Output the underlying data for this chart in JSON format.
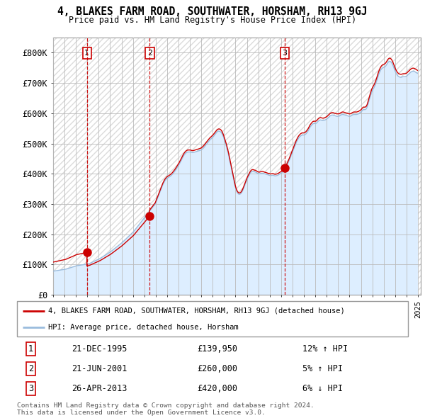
{
  "title": "4, BLAKES FARM ROAD, SOUTHWATER, HORSHAM, RH13 9GJ",
  "subtitle": "Price paid vs. HM Land Registry's House Price Index (HPI)",
  "ylim": [
    0,
    850000
  ],
  "yticks": [
    0,
    100000,
    200000,
    300000,
    400000,
    500000,
    600000,
    700000,
    800000
  ],
  "ytick_labels": [
    "£0",
    "£100K",
    "£200K",
    "£300K",
    "£400K",
    "£500K",
    "£600K",
    "£700K",
    "£800K"
  ],
  "sale_dates": [
    "1995-12-21",
    "2001-06-21",
    "2013-04-26"
  ],
  "sale_prices": [
    139950,
    260000,
    420000
  ],
  "sale_labels": [
    "1",
    "2",
    "3"
  ],
  "sale_date_strs": [
    "21-DEC-1995",
    "21-JUN-2001",
    "26-APR-2013"
  ],
  "sale_pct": [
    "12% ↑ HPI",
    "5% ↑ HPI",
    "6% ↓ HPI"
  ],
  "line_color_red": "#cc0000",
  "line_color_blue": "#99bbdd",
  "fill_color_blue": "#ddeeff",
  "marker_color_red": "#cc0000",
  "vline_color": "#cc0000",
  "grid_color": "#cccccc",
  "background_color": "#ffffff",
  "legend_label_red": "4, BLAKES FARM ROAD, SOUTHWATER, HORSHAM, RH13 9GJ (detached house)",
  "legend_label_blue": "HPI: Average price, detached house, Horsham",
  "footnote": "Contains HM Land Registry data © Crown copyright and database right 2024.\nThis data is licensed under the Open Government Licence v3.0.",
  "xlim_start": 1993.0,
  "xlim_end": 2025.25,
  "hpi_base_monthly": {
    "1993-01": 78000,
    "1993-02": 78500,
    "1993-03": 79000,
    "1993-04": 79500,
    "1993-05": 80000,
    "1993-06": 80500,
    "1993-07": 81000,
    "1993-08": 81500,
    "1993-09": 82000,
    "1993-10": 82500,
    "1993-11": 83000,
    "1993-12": 83500,
    "1994-01": 84000,
    "1994-02": 84500,
    "1994-03": 85500,
    "1994-04": 86500,
    "1994-05": 87500,
    "1994-06": 88500,
    "1994-07": 89500,
    "1994-08": 90500,
    "1994-09": 91500,
    "1994-10": 92500,
    "1994-11": 93500,
    "1994-12": 94500,
    "1995-01": 95500,
    "1995-02": 96000,
    "1995-03": 96500,
    "1995-04": 97000,
    "1995-05": 97500,
    "1995-06": 98000,
    "1995-07": 98500,
    "1995-08": 99000,
    "1995-09": 99500,
    "1995-10": 100000,
    "1995-11": 100500,
    "1995-12": 101000,
    "1996-01": 101500,
    "1996-02": 102500,
    "1996-03": 103500,
    "1996-04": 105000,
    "1996-05": 106500,
    "1996-06": 108000,
    "1996-07": 109500,
    "1996-08": 111000,
    "1996-09": 112500,
    "1996-10": 114000,
    "1996-11": 115500,
    "1996-12": 117000,
    "1997-01": 118500,
    "1997-02": 120000,
    "1997-03": 122000,
    "1997-04": 124000,
    "1997-05": 126000,
    "1997-06": 128000,
    "1997-07": 130000,
    "1997-08": 132000,
    "1997-09": 134000,
    "1997-10": 136000,
    "1997-11": 138000,
    "1997-12": 140000,
    "1998-01": 142000,
    "1998-02": 144500,
    "1998-03": 147000,
    "1998-04": 149500,
    "1998-05": 152000,
    "1998-06": 154500,
    "1998-07": 157000,
    "1998-08": 159500,
    "1998-09": 162000,
    "1998-10": 164500,
    "1998-11": 167000,
    "1998-12": 169500,
    "1999-01": 172000,
    "1999-02": 175000,
    "1999-03": 178000,
    "1999-04": 181000,
    "1999-05": 184000,
    "1999-06": 187000,
    "1999-07": 190000,
    "1999-08": 193000,
    "1999-09": 196000,
    "1999-10": 199000,
    "1999-11": 202000,
    "1999-12": 205000,
    "2000-01": 208000,
    "2000-02": 212000,
    "2000-03": 216000,
    "2000-04": 220000,
    "2000-05": 224000,
    "2000-06": 228000,
    "2000-07": 232000,
    "2000-08": 236000,
    "2000-09": 240000,
    "2000-10": 244000,
    "2000-11": 248000,
    "2000-12": 252000,
    "2001-01": 256000,
    "2001-02": 260000,
    "2001-03": 264000,
    "2001-04": 268000,
    "2001-05": 272000,
    "2001-06": 276000,
    "2001-07": 280000,
    "2001-08": 284000,
    "2001-09": 288000,
    "2001-10": 292000,
    "2001-11": 296000,
    "2001-12": 300000,
    "2002-01": 308000,
    "2002-02": 316000,
    "2002-03": 324000,
    "2002-04": 332000,
    "2002-05": 340000,
    "2002-06": 348000,
    "2002-07": 356000,
    "2002-08": 364000,
    "2002-09": 370000,
    "2002-10": 376000,
    "2002-11": 380000,
    "2002-12": 384000,
    "2003-01": 386000,
    "2003-02": 388000,
    "2003-03": 390000,
    "2003-04": 392000,
    "2003-05": 395000,
    "2003-06": 398000,
    "2003-07": 402000,
    "2003-08": 406000,
    "2003-09": 410000,
    "2003-10": 415000,
    "2003-11": 420000,
    "2003-12": 425000,
    "2004-01": 430000,
    "2004-02": 436000,
    "2004-03": 442000,
    "2004-04": 448000,
    "2004-05": 454000,
    "2004-06": 460000,
    "2004-07": 464000,
    "2004-08": 468000,
    "2004-09": 470000,
    "2004-10": 472000,
    "2004-11": 472000,
    "2004-12": 472000,
    "2005-01": 472000,
    "2005-02": 471000,
    "2005-03": 470000,
    "2005-04": 470000,
    "2005-05": 471000,
    "2005-06": 472000,
    "2005-07": 473000,
    "2005-08": 474000,
    "2005-09": 475000,
    "2005-10": 476000,
    "2005-11": 477000,
    "2005-12": 478000,
    "2006-01": 480000,
    "2006-02": 483000,
    "2006-03": 486000,
    "2006-04": 490000,
    "2006-05": 494000,
    "2006-06": 498000,
    "2006-07": 502000,
    "2006-08": 506000,
    "2006-09": 510000,
    "2006-10": 513000,
    "2006-11": 516000,
    "2006-12": 519000,
    "2007-01": 522000,
    "2007-02": 526000,
    "2007-03": 530000,
    "2007-04": 534000,
    "2007-05": 538000,
    "2007-06": 540000,
    "2007-07": 541000,
    "2007-08": 540000,
    "2007-09": 538000,
    "2007-10": 534000,
    "2007-11": 528000,
    "2007-12": 520000,
    "2008-01": 510000,
    "2008-02": 500000,
    "2008-03": 490000,
    "2008-04": 478000,
    "2008-05": 465000,
    "2008-06": 450000,
    "2008-07": 435000,
    "2008-08": 420000,
    "2008-09": 405000,
    "2008-10": 390000,
    "2008-11": 375000,
    "2008-12": 360000,
    "2009-01": 348000,
    "2009-02": 340000,
    "2009-03": 335000,
    "2009-04": 332000,
    "2009-05": 332000,
    "2009-06": 334000,
    "2009-07": 338000,
    "2009-08": 344000,
    "2009-09": 352000,
    "2009-10": 360000,
    "2009-11": 368000,
    "2009-12": 376000,
    "2010-01": 384000,
    "2010-02": 390000,
    "2010-03": 396000,
    "2010-04": 402000,
    "2010-05": 406000,
    "2010-06": 408000,
    "2010-07": 408000,
    "2010-08": 407000,
    "2010-09": 406000,
    "2010-10": 405000,
    "2010-11": 403000,
    "2010-12": 401000,
    "2011-01": 400000,
    "2011-02": 400000,
    "2011-03": 401000,
    "2011-04": 402000,
    "2011-05": 402000,
    "2011-06": 401000,
    "2011-07": 400000,
    "2011-08": 399000,
    "2011-09": 398000,
    "2011-10": 397000,
    "2011-11": 396000,
    "2011-12": 395000,
    "2012-01": 394000,
    "2012-02": 394000,
    "2012-03": 395000,
    "2012-04": 395000,
    "2012-05": 394000,
    "2012-06": 393000,
    "2012-07": 393000,
    "2012-08": 394000,
    "2012-09": 395000,
    "2012-10": 397000,
    "2012-11": 399000,
    "2012-12": 401000,
    "2013-01": 403000,
    "2013-02": 406000,
    "2013-03": 409000,
    "2013-04": 413000,
    "2013-05": 418000,
    "2013-06": 424000,
    "2013-07": 430000,
    "2013-08": 437000,
    "2013-09": 444000,
    "2013-10": 452000,
    "2013-11": 460000,
    "2013-12": 468000,
    "2014-01": 476000,
    "2014-02": 484000,
    "2014-03": 492000,
    "2014-04": 500000,
    "2014-05": 507000,
    "2014-06": 513000,
    "2014-07": 518000,
    "2014-08": 522000,
    "2014-09": 525000,
    "2014-10": 527000,
    "2014-11": 528000,
    "2014-12": 528000,
    "2015-01": 528000,
    "2015-02": 530000,
    "2015-03": 533000,
    "2015-04": 537000,
    "2015-05": 542000,
    "2015-06": 548000,
    "2015-07": 554000,
    "2015-08": 558000,
    "2015-09": 562000,
    "2015-10": 565000,
    "2015-11": 566000,
    "2015-12": 566000,
    "2016-01": 566000,
    "2016-02": 568000,
    "2016-03": 572000,
    "2016-04": 575000,
    "2016-05": 577000,
    "2016-06": 578000,
    "2016-07": 577000,
    "2016-08": 576000,
    "2016-09": 576000,
    "2016-10": 577000,
    "2016-11": 578000,
    "2016-12": 580000,
    "2017-01": 582000,
    "2017-02": 585000,
    "2017-03": 588000,
    "2017-04": 591000,
    "2017-05": 593000,
    "2017-06": 594000,
    "2017-07": 594000,
    "2017-08": 593000,
    "2017-09": 592000,
    "2017-10": 591000,
    "2017-11": 590000,
    "2017-12": 590000,
    "2018-01": 590000,
    "2018-02": 591000,
    "2018-03": 593000,
    "2018-04": 595000,
    "2018-05": 596000,
    "2018-06": 596000,
    "2018-07": 595000,
    "2018-08": 594000,
    "2018-09": 593000,
    "2018-10": 592000,
    "2018-11": 591000,
    "2018-12": 590000,
    "2019-01": 590000,
    "2019-02": 591000,
    "2019-03": 593000,
    "2019-04": 595000,
    "2019-05": 596000,
    "2019-06": 596000,
    "2019-07": 596000,
    "2019-08": 596000,
    "2019-09": 597000,
    "2019-10": 598000,
    "2019-11": 600000,
    "2019-12": 602000,
    "2020-01": 605000,
    "2020-02": 609000,
    "2020-03": 612000,
    "2020-04": 612000,
    "2020-05": 612000,
    "2020-06": 614000,
    "2020-07": 620000,
    "2020-08": 630000,
    "2020-09": 641000,
    "2020-10": 652000,
    "2020-11": 662000,
    "2020-12": 671000,
    "2021-01": 678000,
    "2021-02": 683000,
    "2021-03": 689000,
    "2021-04": 697000,
    "2021-05": 706000,
    "2021-06": 716000,
    "2021-07": 726000,
    "2021-08": 734000,
    "2021-09": 741000,
    "2021-10": 746000,
    "2021-11": 749000,
    "2021-12": 751000,
    "2022-01": 752000,
    "2022-02": 754000,
    "2022-03": 758000,
    "2022-04": 763000,
    "2022-05": 768000,
    "2022-06": 771000,
    "2022-07": 772000,
    "2022-08": 770000,
    "2022-09": 766000,
    "2022-10": 760000,
    "2022-11": 752000,
    "2022-12": 744000,
    "2023-01": 736000,
    "2023-02": 730000,
    "2023-03": 725000,
    "2023-04": 722000,
    "2023-05": 720000,
    "2023-06": 719000,
    "2023-07": 719000,
    "2023-08": 720000,
    "2023-09": 721000,
    "2023-10": 721000,
    "2023-11": 721000,
    "2023-12": 722000,
    "2024-01": 724000,
    "2024-02": 727000,
    "2024-03": 730000,
    "2024-04": 733000,
    "2024-05": 736000,
    "2024-06": 738000,
    "2024-07": 739000,
    "2024-08": 739000,
    "2024-09": 738000,
    "2024-10": 736000,
    "2024-11": 734000,
    "2024-12": 732000
  }
}
